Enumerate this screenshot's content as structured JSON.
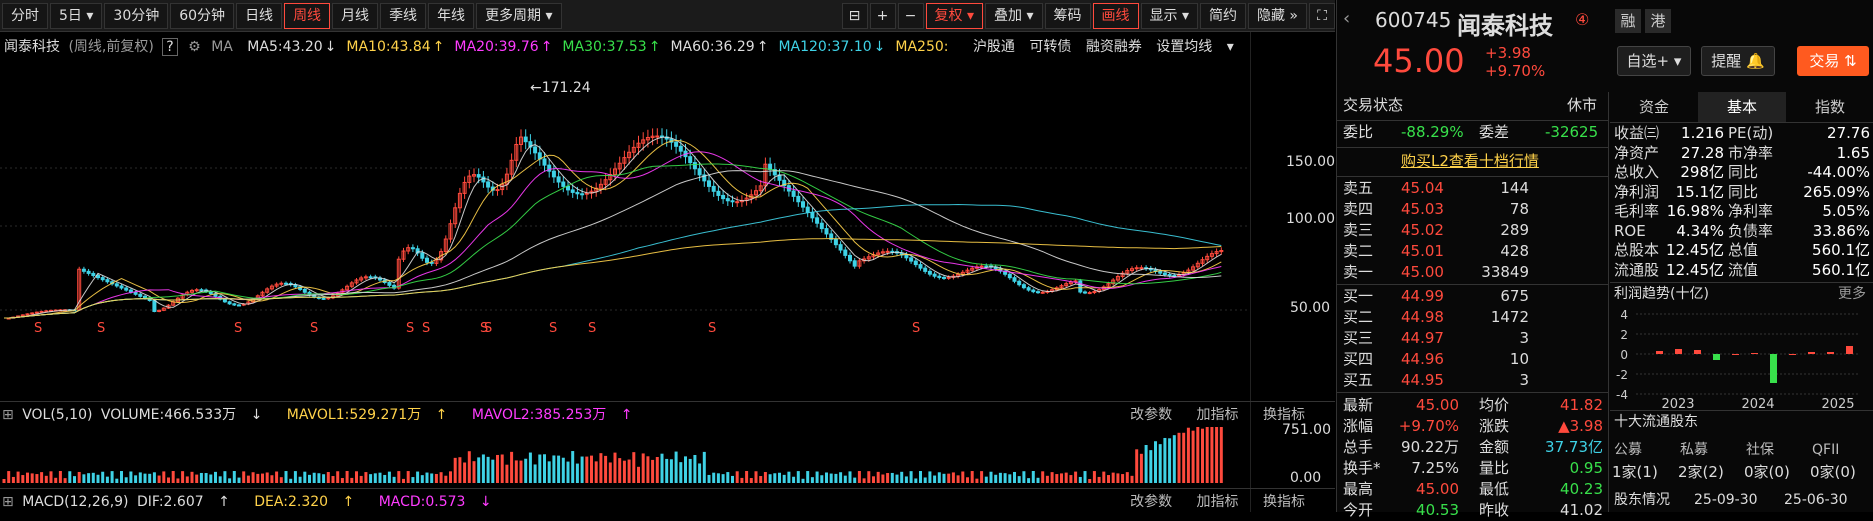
{
  "toolbar": {
    "periods": [
      "分时",
      "5日",
      "30分钟",
      "60分钟",
      "日线",
      "周线",
      "月线",
      "季线",
      "年线",
      "更多周期"
    ],
    "active_period": "周线",
    "tools": [
      "复权",
      "叠加",
      "筹码",
      "画线",
      "显示",
      "简约",
      "隐藏"
    ]
  },
  "header": {
    "name": "闻泰科技",
    "mode": "(周线,前复权)",
    "ma_label": "MA",
    "ma": [
      {
        "label": "MA5:43.20",
        "arrow": "↓",
        "color": "#dddddd"
      },
      {
        "label": "MA10:43.84",
        "arrow": "↑",
        "color": "#ffd24a"
      },
      {
        "label": "MA20:39.76",
        "arrow": "↑",
        "color": "#ff3cff"
      },
      {
        "label": "MA30:37.53",
        "arrow": "↑",
        "color": "#38e04b"
      },
      {
        "label": "MA60:36.29",
        "arrow": "↑",
        "color": "#dddddd"
      },
      {
        "label": "MA120:37.10",
        "arrow": "↓",
        "color": "#3fd2e6"
      },
      {
        "label": "MA250:",
        "arrow": "",
        "color": "#ffd24a"
      }
    ],
    "links": [
      "沪股通",
      "可转债",
      "融资融券",
      "设置均线"
    ]
  },
  "price_axis": [
    "150.00",
    "100.00",
    "50.00"
  ],
  "peak_label": "←171.24",
  "vol_header": {
    "title": "VOL(5,10)",
    "volume": "VOLUME:466.533万",
    "vol_arrow": "↓",
    "mavol1": "MAVOL1:529.271万",
    "mavol1_arrow": "↑",
    "mavol2": "MAVOL2:385.253万",
    "mavol2_arrow": "↑"
  },
  "pane_tools": [
    "改参数",
    "加指标",
    "换指标"
  ],
  "vol_axis": [
    "751.00",
    "0.00"
  ],
  "macd_header": {
    "title": "MACD(12,26,9)",
    "dif": "DIF:2.607",
    "dif_arrow": "↑",
    "dea": "DEA:2.320",
    "dea_arrow": "↑",
    "macd": "MACD:0.573",
    "macd_arrow": "↓"
  },
  "stock": {
    "code": "600745",
    "name": "闻泰科技",
    "badge": "④",
    "tags": [
      "融",
      "港"
    ],
    "price": "45.00",
    "change": "+3.98",
    "pct": "+9.70%",
    "buttons": [
      "自选+",
      "提醒",
      "交易"
    ]
  },
  "trade": {
    "status_label": "交易状态",
    "status": "休市",
    "weibi_label": "委比",
    "weibi": "-88.29%",
    "weicha_label": "委差",
    "weicha": "-32625",
    "l2_link": "购买L2查看十档行情",
    "asks": [
      {
        "label": "卖五",
        "price": "45.04",
        "vol": "144"
      },
      {
        "label": "卖四",
        "price": "45.03",
        "vol": "78"
      },
      {
        "label": "卖三",
        "price": "45.02",
        "vol": "289"
      },
      {
        "label": "卖二",
        "price": "45.01",
        "vol": "428"
      },
      {
        "label": "卖一",
        "price": "45.00",
        "vol": "33849"
      }
    ],
    "bids": [
      {
        "label": "买一",
        "price": "44.99",
        "vol": "675"
      },
      {
        "label": "买二",
        "price": "44.98",
        "vol": "1472"
      },
      {
        "label": "买三",
        "price": "44.97",
        "vol": "3"
      },
      {
        "label": "买四",
        "price": "44.96",
        "vol": "10"
      },
      {
        "label": "买五",
        "price": "44.95",
        "vol": "3"
      }
    ],
    "stats": [
      {
        "l1": "最新",
        "v1": "45.00",
        "c1": "#ff4a3d",
        "l2": "均价",
        "v2": "41.82",
        "c2": "#ff4a3d"
      },
      {
        "l1": "涨幅",
        "v1": "+9.70%",
        "c1": "#ff4a3d",
        "l2": "涨跌",
        "v2": "▲3.98",
        "c2": "#ff4a3d"
      },
      {
        "l1": "总手",
        "v1": "90.22万",
        "c1": "#dddddd",
        "l2": "金额",
        "v2": "37.73亿",
        "c2": "#3fd2e6"
      },
      {
        "l1": "换手*",
        "v1": "7.25%",
        "c1": "#dddddd",
        "l2": "量比",
        "v2": "0.95",
        "c2": "#38e04b"
      },
      {
        "l1": "最高",
        "v1": "45.00",
        "c1": "#ff4a3d",
        "l2": "最低",
        "v2": "40.23",
        "c2": "#38e04b"
      },
      {
        "l1": "今开",
        "v1": "40.53",
        "c1": "#38e04b",
        "l2": "昨收",
        "v2": "41.02",
        "c2": "#dddddd"
      }
    ]
  },
  "fund": {
    "tabs": [
      "资金",
      "基本",
      "指数"
    ],
    "active_tab": "基本",
    "rows": [
      {
        "l1": "收益㈢",
        "v1": "1.216",
        "l2": "PE(动)",
        "v2": "27.76"
      },
      {
        "l1": "净资产",
        "v1": "27.28",
        "l2": "市净率",
        "v2": "1.65"
      },
      {
        "l1": "总收入",
        "v1": "298亿",
        "l2": "同比",
        "v2": "-44.00%"
      },
      {
        "l1": "净利润",
        "v1": "15.1亿",
        "l2": "同比",
        "v2": "265.09%"
      },
      {
        "l1": "毛利率",
        "v1": "16.98%",
        "l2": "净利率",
        "v2": "5.05%"
      },
      {
        "l1": "ROE",
        "v1": "4.34%",
        "l2": "负债率",
        "v2": "33.86%"
      },
      {
        "l1": "总股本",
        "v1": "12.45亿",
        "l2": "总值",
        "v2": "560.1亿"
      },
      {
        "l1": "流通股",
        "v1": "12.45亿",
        "l2": "流值",
        "v2": "560.1亿"
      }
    ],
    "profit_title": "利润趋势(十亿)",
    "more": "更多",
    "profit_axis": [
      "4",
      "2",
      "0",
      "-2",
      "-4"
    ],
    "years": [
      "2023",
      "2024",
      "2025"
    ],
    "holders_title": "十大流通股东",
    "holder_types": [
      {
        "type": "公募",
        "count": "1家(1)"
      },
      {
        "type": "私募",
        "count": "2家(2)"
      },
      {
        "type": "社保",
        "count": "0家(0)"
      },
      {
        "type": "QFII",
        "count": "0家(0)"
      }
    ],
    "holders_more": "股东情况",
    "dates": [
      "25-09-30",
      "25-06-30"
    ]
  }
}
